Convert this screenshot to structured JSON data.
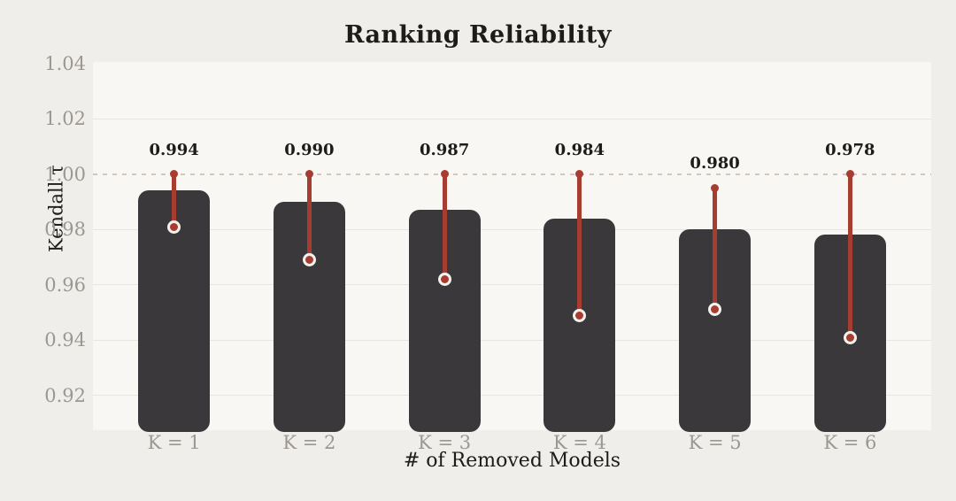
{
  "chart_data": {
    "type": "bar",
    "title": "Ranking Reliability",
    "xlabel": "# of Removed Models",
    "ylabel": "Kendall τ",
    "categories": [
      "K = 1",
      "K = 2",
      "K = 3",
      "K = 4",
      "K = 5",
      "K = 6"
    ],
    "values": [
      0.994,
      0.99,
      0.987,
      0.984,
      0.98,
      0.978
    ],
    "value_label_decimals": 3,
    "error_high": [
      1.0,
      1.0,
      1.0,
      1.0,
      0.995,
      1.0
    ],
    "error_low": [
      0.981,
      0.969,
      0.962,
      0.949,
      0.951,
      0.941
    ],
    "ylim": [
      0.9075,
      1.0405
    ],
    "yticks": [
      0.92,
      0.94,
      0.96,
      0.98,
      1.0,
      1.02,
      1.04
    ],
    "ytick_decimals": 2,
    "reference_line": 1.0,
    "grid": true,
    "legend": "none",
    "colors": {
      "background": "#f0eeea",
      "plot_background": "#f8f7f4",
      "bar": "#3a383a",
      "error_bar": "#a73c31",
      "marker_ring": "#f4f2ef",
      "gridline": "#e9e6e1",
      "reference_line": "#cfc7c0",
      "tick_label": "#9b9894",
      "text": "#1d1c1b"
    }
  }
}
